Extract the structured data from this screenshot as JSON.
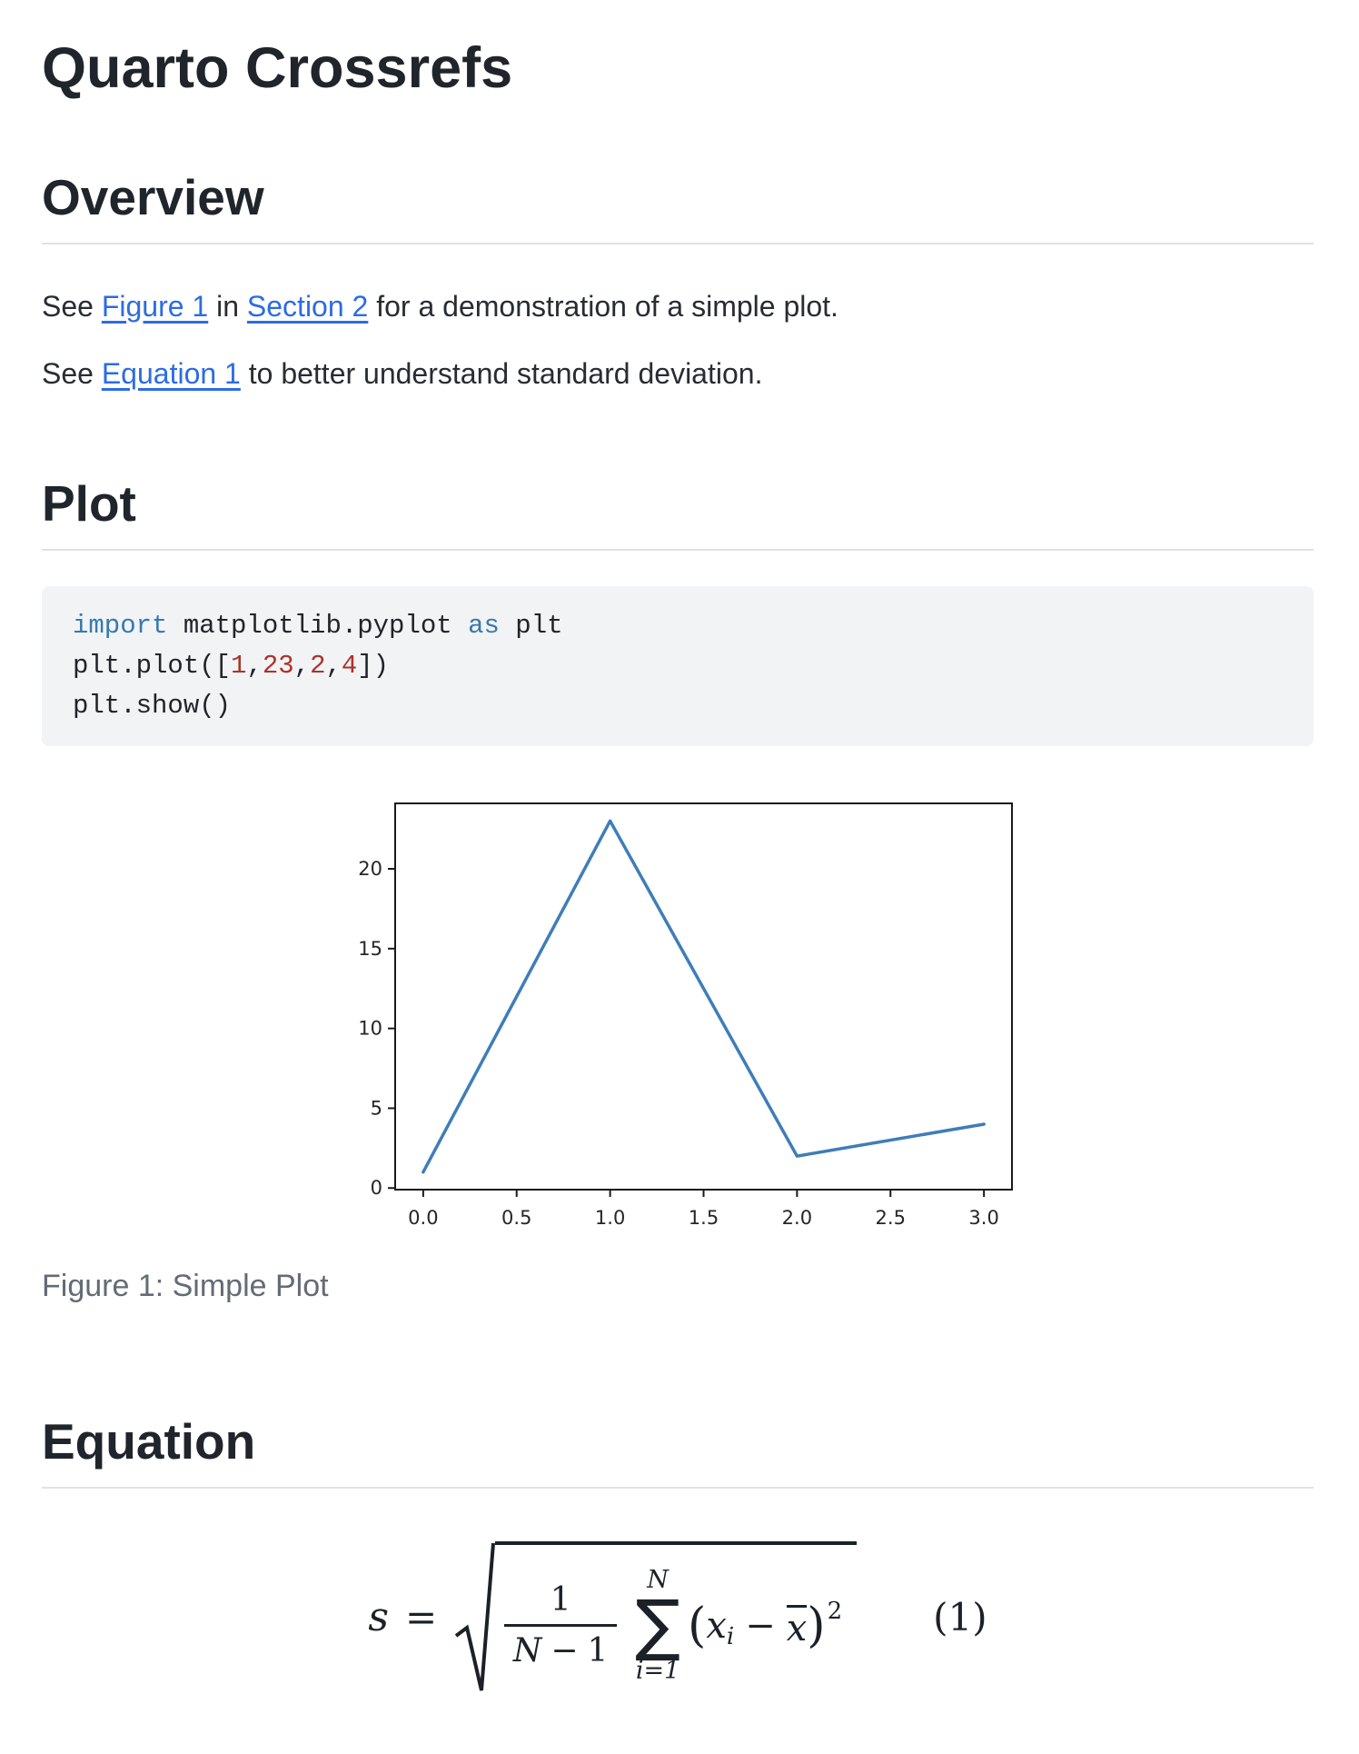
{
  "page": {
    "title": "Quarto Crossrefs"
  },
  "overview": {
    "heading": "Overview",
    "p1": {
      "pre": "See ",
      "link_figure": "Figure 1",
      "mid": " in ",
      "link_section": "Section 2",
      "post": " for a demonstration of a simple plot."
    },
    "p2": {
      "pre": "See ",
      "link_equation": "Equation 1",
      "post": " to better understand standard deviation."
    }
  },
  "plot": {
    "heading": "Plot",
    "code": {
      "lines": [
        {
          "tokens": [
            {
              "text": "import"
            },
            {
              "text": " matplotlib.pyplot "
            },
            {
              "text": "as"
            },
            {
              "text": " plt"
            }
          ]
        },
        {
          "tokens": [
            {
              "text": "plt.plot(["
            },
            {
              "text": "1"
            },
            {
              "text": ","
            },
            {
              "text": "23"
            },
            {
              "text": ","
            },
            {
              "text": "2"
            },
            {
              "text": ","
            },
            {
              "text": "4"
            },
            {
              "text": "])"
            }
          ]
        },
        {
          "tokens": [
            {
              "text": "plt.show()"
            }
          ]
        }
      ]
    },
    "caption": "Figure 1: Simple Plot"
  },
  "equation": {
    "heading": "Equation",
    "math": {
      "lhs": "s",
      "equals": "=",
      "frac_num": "1",
      "frac_den_N": "N",
      "frac_den_minus": "−",
      "frac_den_one": "1",
      "sum_top": "N",
      "sigma": "∑",
      "sum_bot": "i=1",
      "lparen": "(",
      "x": "x",
      "sub_i": "i",
      "minus": "−",
      "xbar": "x",
      "rparen": ")",
      "sup_two": "2",
      "tag": "(1)"
    }
  },
  "chart_data": {
    "type": "line",
    "title": "",
    "xlabel": "",
    "ylabel": "",
    "x": [
      0,
      1,
      2,
      3
    ],
    "values": [
      1,
      23,
      2,
      4
    ],
    "xticks": [
      0.0,
      0.5,
      1.0,
      1.5,
      2.0,
      2.5,
      3.0
    ],
    "xtick_labels": [
      "0.0",
      "0.5",
      "1.0",
      "1.5",
      "2.0",
      "2.5",
      "3.0"
    ],
    "yticks": [
      0,
      5,
      10,
      15,
      20
    ],
    "ytick_labels": [
      "0",
      "5",
      "10",
      "15",
      "20"
    ],
    "xlim": [
      -0.15,
      3.15
    ],
    "ylim": [
      -0.1,
      24.1
    ],
    "grid": false,
    "legend": "none",
    "line_color": "#3f7db8",
    "spine_color": "#1a1a1a",
    "tick_text_color": "#262626"
  },
  "colors": {
    "link": "#2c6ce3",
    "heading": "#20252b",
    "body_text": "#282d33",
    "caption": "#646b74",
    "code_bg": "#f1f3f5",
    "code_keyword": "#3779ad",
    "code_number": "#ad3228",
    "rule": "#dee2e6"
  }
}
